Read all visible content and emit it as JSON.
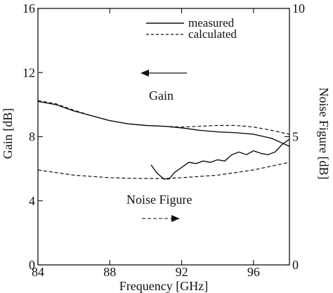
{
  "chart_data": {
    "type": "line",
    "xlabel": "Frequency [GHz]",
    "ylabel_left": "Gain [dB]",
    "ylabel_right": "Noise Figure [dB]",
    "xlim": [
      84,
      98
    ],
    "ylim_left": [
      0,
      16
    ],
    "ylim_right": [
      0,
      10
    ],
    "x_ticks": [
      84,
      88,
      92,
      96
    ],
    "x_tick_labels": [
      "84",
      "88",
      "92",
      "96"
    ],
    "y_left_ticks": [
      0,
      4,
      8,
      12,
      16
    ],
    "y_left_tick_labels": [
      "0",
      "4",
      "8",
      "12",
      "16"
    ],
    "y_right_ticks": [
      0,
      5,
      10
    ],
    "y_right_tick_labels": [
      "0",
      "5",
      "10"
    ],
    "grid": false,
    "legend": {
      "placement": "top-right",
      "entries": [
        {
          "label": "measured",
          "style": "solid"
        },
        {
          "label": "calculated",
          "style": "dashed"
        }
      ]
    },
    "annotations": [
      {
        "text": "Gain",
        "arrow": "left"
      },
      {
        "text": "Noise Figure",
        "arrow": "right"
      }
    ],
    "series": [
      {
        "legend": "measured",
        "axis": "left",
        "style": "solid",
        "x": [
          84,
          85,
          86,
          87,
          88,
          89,
          90,
          91,
          92,
          93,
          94,
          95,
          96,
          97,
          97.5,
          98
        ],
        "y": [
          10.2,
          10.0,
          9.6,
          9.3,
          9.0,
          8.8,
          8.7,
          8.65,
          8.55,
          8.4,
          8.3,
          8.25,
          8.15,
          7.9,
          7.65,
          7.4
        ]
      },
      {
        "legend": "calculated",
        "axis": "left",
        "style": "dashed",
        "x": [
          84,
          85,
          86,
          87,
          88,
          89,
          90,
          91,
          92,
          93,
          94,
          95,
          96,
          97,
          98
        ],
        "y": [
          10.25,
          10.05,
          9.65,
          9.3,
          9.0,
          8.8,
          8.7,
          8.65,
          8.6,
          8.65,
          8.7,
          8.7,
          8.6,
          8.4,
          8.15
        ]
      },
      {
        "legend": "measured",
        "axis": "right",
        "style": "solid",
        "x": [
          90.3,
          90.6,
          91.0,
          91.3,
          91.6,
          92.0,
          92.4,
          92.8,
          93.2,
          93.6,
          94.0,
          94.4,
          94.8,
          95.2,
          95.6,
          96.0,
          96.4,
          96.8,
          97.2,
          97.6,
          98.0
        ],
        "y": [
          3.9,
          3.6,
          3.35,
          3.35,
          3.6,
          3.8,
          4.0,
          3.95,
          4.05,
          4.0,
          4.1,
          4.05,
          4.3,
          4.4,
          4.3,
          4.45,
          4.35,
          4.3,
          4.4,
          4.7,
          4.9
        ]
      },
      {
        "legend": "calculated",
        "axis": "right",
        "style": "dashed",
        "x": [
          84,
          85,
          86,
          87,
          88,
          89,
          90,
          91,
          92,
          93,
          94,
          95,
          96,
          97,
          98
        ],
        "y": [
          3.7,
          3.6,
          3.5,
          3.45,
          3.4,
          3.38,
          3.37,
          3.37,
          3.4,
          3.45,
          3.5,
          3.6,
          3.7,
          3.85,
          4.0
        ]
      }
    ]
  }
}
